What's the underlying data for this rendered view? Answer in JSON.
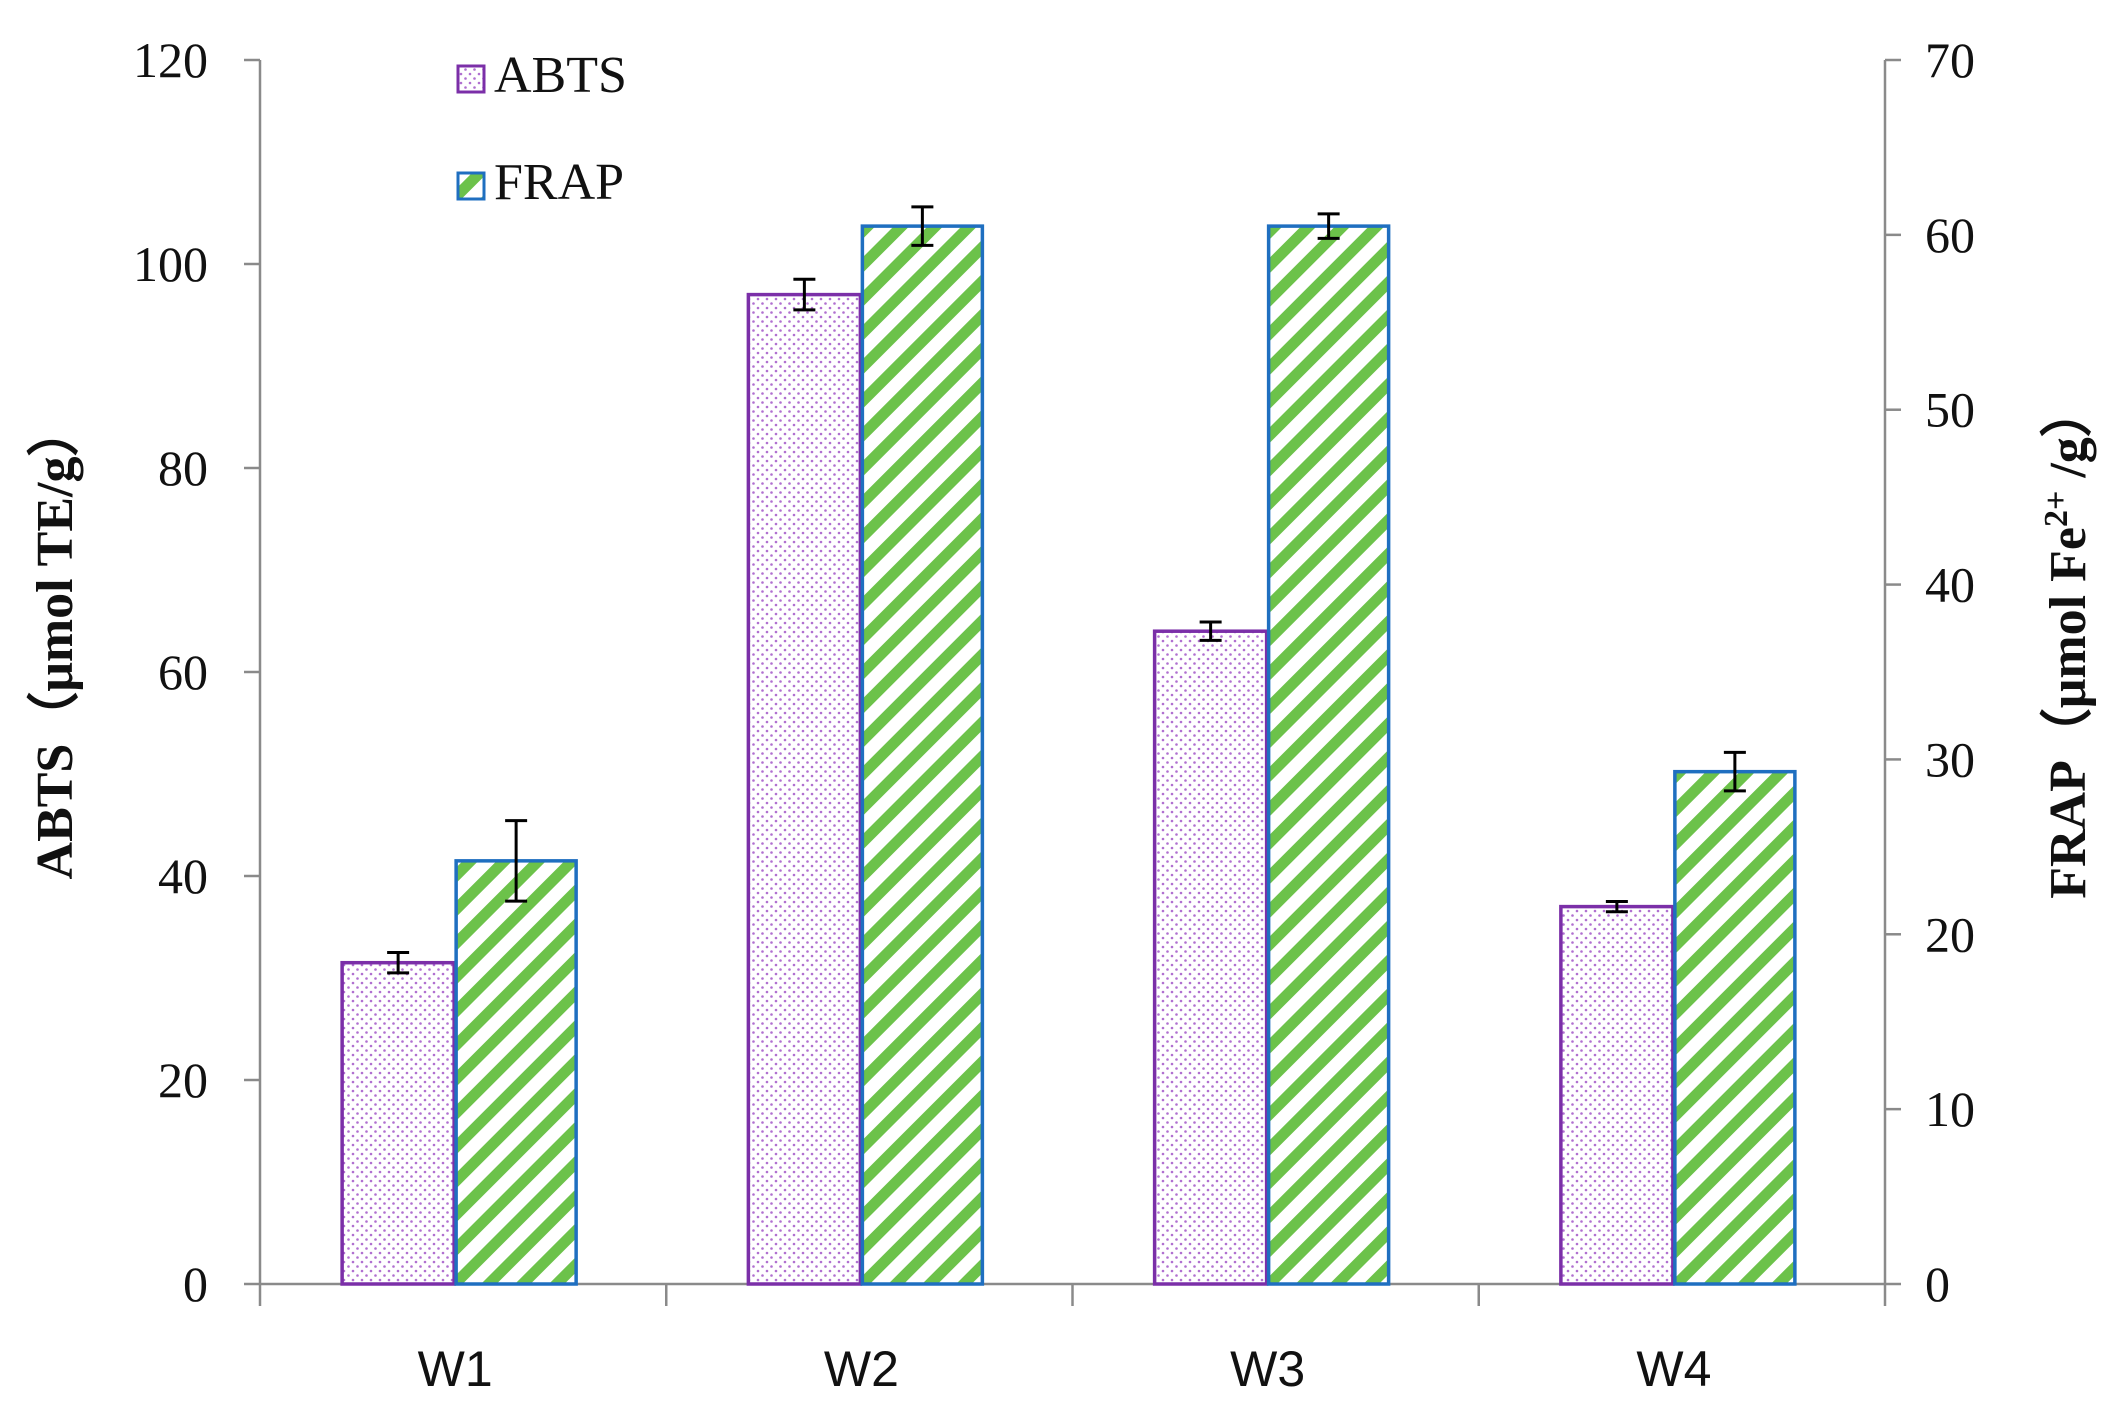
{
  "chart_data": {
    "type": "bar",
    "categories": [
      "W1",
      "W2",
      "W3",
      "W4"
    ],
    "series": [
      {
        "name": "ABTS",
        "axis": "left",
        "values": [
          31.5,
          97,
          64,
          37
        ],
        "errors": [
          1.0,
          1.5,
          0.9,
          0.5
        ],
        "color": "#7B2FA8",
        "pattern": "dots"
      },
      {
        "name": "FRAP",
        "axis": "right",
        "values": [
          24.2,
          60.5,
          60.5,
          29.3
        ],
        "errors": [
          2.3,
          1.1,
          0.7,
          1.1
        ],
        "color": "#1F6FC0",
        "fill_color": "#6CC24A",
        "pattern": "diagonal-stripes"
      }
    ],
    "left_axis": {
      "label_main": "ABTS（μmol TE/g）",
      "ylim": [
        0,
        120
      ],
      "ticks": [
        0,
        20,
        40,
        60,
        80,
        100,
        120
      ]
    },
    "right_axis": {
      "label_prefix": "FRAP（μmol Fe",
      "label_sup": "2+",
      "label_suffix": " /g）",
      "ylim": [
        0,
        70
      ],
      "ticks": [
        0,
        10,
        20,
        30,
        40,
        50,
        60,
        70
      ]
    },
    "legend": {
      "position": "top-left",
      "entries": [
        "ABTS",
        "FRAP"
      ]
    },
    "grid": false
  }
}
